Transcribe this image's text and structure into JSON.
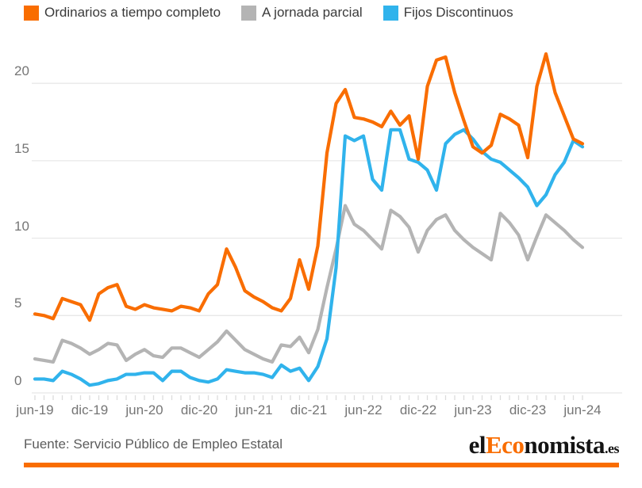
{
  "chart_data": {
    "type": "line",
    "title": "",
    "grid": true,
    "legend_position": "top",
    "ylim": [
      0,
      22.5
    ],
    "y_ticks": [
      0,
      5,
      10,
      15,
      20
    ],
    "x_tick_labels": [
      "jun-19",
      "dic-19",
      "jun-20",
      "dic-20",
      "jun-21",
      "dic-21",
      "jun-22",
      "dic-22",
      "jun-23",
      "dic-23",
      "jun-24"
    ],
    "x_tick_every": 6,
    "x": [
      "jun-19",
      "jul-19",
      "ago-19",
      "sep-19",
      "oct-19",
      "nov-19",
      "dic-19",
      "ene-20",
      "feb-20",
      "mar-20",
      "abr-20",
      "may-20",
      "jun-20",
      "jul-20",
      "ago-20",
      "sep-20",
      "oct-20",
      "nov-20",
      "dic-20",
      "ene-21",
      "feb-21",
      "mar-21",
      "abr-21",
      "may-21",
      "jun-21",
      "jul-21",
      "ago-21",
      "sep-21",
      "oct-21",
      "nov-21",
      "dic-21",
      "ene-22",
      "feb-22",
      "mar-22",
      "abr-22",
      "may-22",
      "jun-22",
      "jul-22",
      "ago-22",
      "sep-22",
      "oct-22",
      "nov-22",
      "dic-22",
      "ene-23",
      "feb-23",
      "mar-23",
      "abr-23",
      "may-23",
      "jun-23",
      "jul-23",
      "ago-23",
      "sep-23",
      "oct-23",
      "nov-23",
      "dic-23",
      "ene-24",
      "feb-24",
      "mar-24",
      "abr-24",
      "may-24",
      "jun-24"
    ],
    "series": [
      {
        "name": "A jornada parcial",
        "color": "#B4B4B4",
        "values": [
          2.2,
          2.1,
          2.0,
          3.4,
          3.2,
          2.9,
          2.5,
          2.8,
          3.2,
          3.1,
          2.1,
          2.5,
          2.8,
          2.4,
          2.3,
          2.9,
          2.9,
          2.6,
          2.3,
          2.8,
          3.3,
          4.0,
          3.4,
          2.8,
          2.5,
          2.2,
          2.0,
          3.1,
          3.0,
          3.6,
          2.6,
          4.1,
          6.8,
          9.3,
          12.1,
          10.9,
          10.5,
          9.9,
          9.3,
          11.8,
          11.4,
          10.7,
          9.1,
          10.5,
          11.2,
          11.5,
          10.5,
          9.9,
          9.4,
          9.0,
          8.6,
          11.6,
          11.0,
          10.2,
          8.6,
          10.1,
          11.5,
          11.0,
          10.5,
          9.9,
          9.4
        ]
      },
      {
        "name": "Fijos Discontinuos",
        "color": "#30B3EC",
        "values": [
          0.9,
          0.9,
          0.8,
          1.4,
          1.2,
          0.9,
          0.5,
          0.6,
          0.8,
          0.9,
          1.2,
          1.2,
          1.3,
          1.3,
          0.8,
          1.4,
          1.4,
          1.0,
          0.8,
          0.7,
          0.9,
          1.5,
          1.4,
          1.3,
          1.3,
          1.2,
          1.0,
          1.8,
          1.4,
          1.6,
          0.8,
          1.7,
          3.5,
          8.1,
          16.6,
          16.3,
          16.6,
          13.8,
          13.1,
          17.0,
          17.0,
          15.1,
          14.9,
          14.4,
          13.1,
          16.1,
          16.7,
          17.0,
          16.4,
          15.6,
          15.1,
          14.9,
          14.4,
          13.9,
          13.3,
          12.1,
          12.8,
          14.1,
          14.9,
          16.3,
          15.9
        ]
      },
      {
        "name": "Ordinarios a tiempo completo",
        "color": "#F96D00",
        "values": [
          5.1,
          5.0,
          4.8,
          6.1,
          5.9,
          5.7,
          4.7,
          6.4,
          6.8,
          7.0,
          5.6,
          5.4,
          5.7,
          5.5,
          5.4,
          5.3,
          5.6,
          5.5,
          5.3,
          6.4,
          7.0,
          9.3,
          8.1,
          6.6,
          6.2,
          5.9,
          5.5,
          5.3,
          6.1,
          8.6,
          6.7,
          9.5,
          15.5,
          18.7,
          19.6,
          17.8,
          17.7,
          17.5,
          17.2,
          18.2,
          17.3,
          17.9,
          15.1,
          19.8,
          21.5,
          21.7,
          19.4,
          17.6,
          15.9,
          15.5,
          16.0,
          18.0,
          17.7,
          17.3,
          15.2,
          19.8,
          21.9,
          19.4,
          17.9,
          16.4,
          16.1
        ]
      }
    ]
  },
  "legend": {
    "items": [
      {
        "label": "Ordinarios a tiempo completo",
        "color": "#F96D00"
      },
      {
        "label": "A jornada parcial",
        "color": "#B4B4B4"
      },
      {
        "label": "Fijos Discontinuos",
        "color": "#30B3EC"
      }
    ]
  },
  "footer": {
    "source": "Fuente: Servicio Público de Empleo Estatal",
    "logo": {
      "part1": "el",
      "part2": "Eco",
      "part3": "nomista",
      "tld": ".es"
    }
  },
  "colors": {
    "accent_orange": "#F96D00",
    "series_gray": "#B4B4B4",
    "series_blue": "#30B3EC",
    "gridline": "#E8E8E8",
    "tick_text": "#757575"
  }
}
